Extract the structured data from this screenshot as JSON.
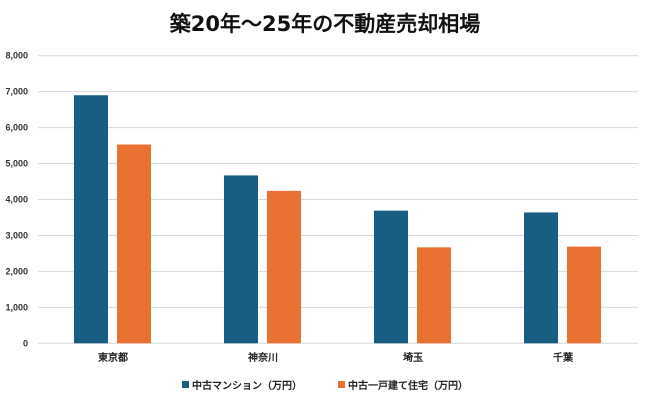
{
  "chart_data": {
    "type": "bar",
    "title": "築20年～25年の不動産売却相場",
    "categories": [
      "東京都",
      "神奈川",
      "埼玉",
      "千葉"
    ],
    "series": [
      {
        "name": "中古マンション（万円）",
        "color": "#175E82",
        "values": [
          6900,
          4670,
          3690,
          3640
        ]
      },
      {
        "name": "中古一戸建て住宅（万円）",
        "color": "#E97132",
        "values": [
          5530,
          4240,
          2670,
          2690
        ]
      }
    ],
    "ylim": [
      0,
      8000
    ],
    "yticks": [
      "0",
      "1,000",
      "2,000",
      "3,000",
      "4,000",
      "5,000",
      "6,000",
      "7,000",
      "8,000"
    ],
    "xlabel": "",
    "ylabel": "",
    "grid": true,
    "legend": "bottom"
  }
}
